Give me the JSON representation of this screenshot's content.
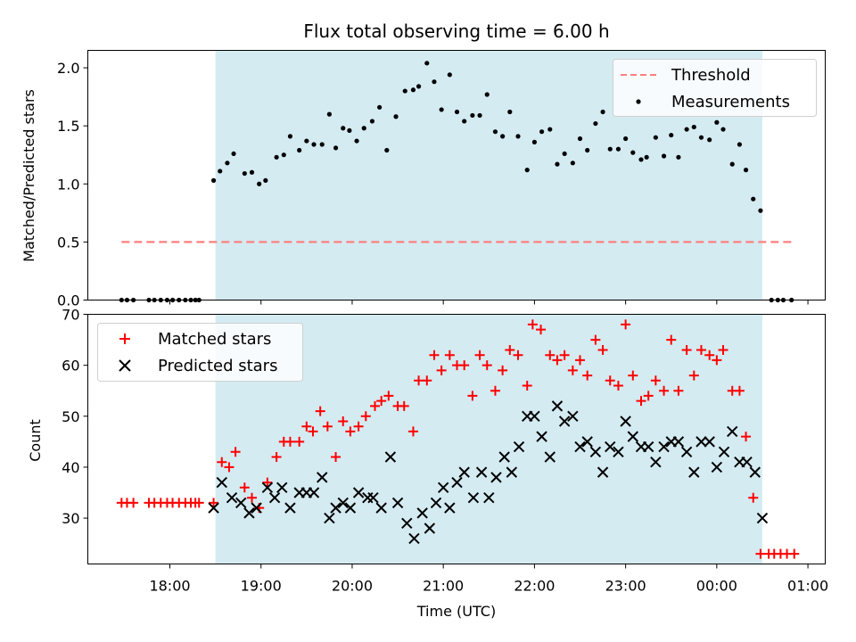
{
  "chart_data": [
    {
      "type": "scatter",
      "title": "Flux total observing time = 6.00 h",
      "xlabel": "",
      "ylabel": "Matched/Predicted stars",
      "ylim": [
        0,
        2.15
      ],
      "y_ticks": [
        "0.0",
        "0.5",
        "1.0",
        "1.5",
        "2.0"
      ],
      "y_tick_values": [
        0,
        0.5,
        1.0,
        1.5,
        2.0
      ],
      "shaded_interval": {
        "start_hours": 18.5,
        "end_hours": 24.5,
        "color": "#add8e6"
      },
      "legend": {
        "position": "top-right",
        "entries": [
          {
            "label": "Threshold",
            "marker": "dashed-line",
            "color": "#ff7f7f"
          },
          {
            "label": "Measurements",
            "marker": "dot",
            "color": "#000000"
          }
        ]
      },
      "threshold": {
        "name": "Threshold",
        "value": 0.5,
        "x_start_hours": 17.47,
        "x_end_hours": 24.83,
        "color": "#ff7f7f"
      },
      "series": [
        {
          "name": "Measurements",
          "color": "#000000",
          "marker": "dot",
          "x_hours": [
            17.47,
            17.53,
            17.6,
            17.77,
            17.83,
            17.9,
            17.97,
            18.03,
            18.1,
            18.17,
            18.23,
            18.28,
            18.32,
            18.48,
            18.55,
            18.63,
            18.7,
            18.82,
            18.9,
            18.98,
            19.05,
            19.17,
            19.25,
            19.32,
            19.42,
            19.5,
            19.58,
            19.67,
            19.75,
            19.82,
            19.9,
            19.97,
            20.05,
            20.13,
            20.22,
            20.3,
            20.38,
            20.48,
            20.58,
            20.67,
            20.73,
            20.82,
            20.9,
            20.98,
            21.07,
            21.15,
            21.23,
            21.32,
            21.4,
            21.48,
            21.57,
            21.65,
            21.73,
            21.82,
            21.92,
            22.0,
            22.08,
            22.17,
            22.25,
            22.33,
            22.42,
            22.5,
            22.58,
            22.67,
            22.75,
            22.83,
            22.92,
            23.0,
            23.08,
            23.17,
            23.23,
            23.33,
            23.42,
            23.5,
            23.58,
            23.67,
            23.75,
            23.83,
            23.92,
            24.0,
            24.07,
            24.17,
            24.25,
            24.32,
            24.4,
            24.48,
            24.6,
            24.67,
            24.73,
            24.82
          ],
          "y": [
            0,
            0,
            0,
            0,
            0,
            0,
            0,
            0,
            0,
            0,
            0,
            0,
            0,
            1.03,
            1.11,
            1.18,
            1.26,
            1.09,
            1.1,
            1.0,
            1.03,
            1.23,
            1.25,
            1.41,
            1.29,
            1.37,
            1.34,
            1.34,
            1.6,
            1.31,
            1.48,
            1.46,
            1.37,
            1.48,
            1.54,
            1.66,
            1.29,
            1.58,
            1.8,
            1.81,
            1.84,
            2.04,
            1.88,
            1.64,
            1.94,
            1.62,
            1.54,
            1.59,
            1.59,
            1.77,
            1.45,
            1.41,
            1.62,
            1.41,
            1.12,
            1.36,
            1.45,
            1.47,
            1.17,
            1.26,
            1.18,
            1.39,
            1.29,
            1.52,
            1.62,
            1.3,
            1.3,
            1.39,
            1.27,
            1.21,
            1.23,
            1.4,
            1.24,
            1.42,
            1.23,
            1.47,
            1.49,
            1.4,
            1.38,
            1.53,
            1.47,
            1.17,
            1.34,
            1.12,
            0.87,
            0.77,
            0,
            0,
            0,
            0
          ]
        }
      ]
    },
    {
      "type": "scatter",
      "title": "",
      "xlabel": "Time (UTC)",
      "ylabel": "Count",
      "ylim": [
        21,
        70
      ],
      "y_ticks": [
        "30",
        "40",
        "50",
        "60",
        "70"
      ],
      "y_tick_values": [
        30,
        40,
        50,
        60,
        70
      ],
      "x_ticks": [
        "18:00",
        "19:00",
        "20:00",
        "21:00",
        "22:00",
        "23:00",
        "00:00",
        "01:00"
      ],
      "x_tick_hours": [
        18,
        19,
        20,
        21,
        22,
        23,
        24,
        25
      ],
      "xlim_hours": [
        17.1,
        25.19
      ],
      "shaded_interval": {
        "start_hours": 18.5,
        "end_hours": 24.5,
        "color": "#add8e6"
      },
      "legend": {
        "position": "top-left",
        "entries": [
          {
            "label": "Matched stars",
            "marker": "plus",
            "color": "#ff0000"
          },
          {
            "label": "Predicted stars",
            "marker": "x",
            "color": "#000000"
          }
        ]
      },
      "series": [
        {
          "name": "Matched stars",
          "color": "#ff0000",
          "marker": "plus",
          "x_hours": [
            17.47,
            17.53,
            17.6,
            17.77,
            17.83,
            17.9,
            17.97,
            18.03,
            18.1,
            18.17,
            18.23,
            18.28,
            18.32,
            18.48,
            18.57,
            18.65,
            18.72,
            18.82,
            18.9,
            18.98,
            19.07,
            19.17,
            19.25,
            19.32,
            19.42,
            19.5,
            19.57,
            19.65,
            19.73,
            19.82,
            19.9,
            19.98,
            20.07,
            20.15,
            20.25,
            20.32,
            20.4,
            20.5,
            20.57,
            20.67,
            20.73,
            20.82,
            20.9,
            20.98,
            21.07,
            21.15,
            21.23,
            21.32,
            21.4,
            21.48,
            21.57,
            21.65,
            21.73,
            21.82,
            21.92,
            21.98,
            22.07,
            22.17,
            22.25,
            22.33,
            22.42,
            22.5,
            22.58,
            22.67,
            22.75,
            22.83,
            22.92,
            23.0,
            23.08,
            23.17,
            23.25,
            23.33,
            23.42,
            23.5,
            23.58,
            23.67,
            23.75,
            23.83,
            23.92,
            24.0,
            24.07,
            24.17,
            24.25,
            24.32,
            24.4,
            24.48,
            24.57,
            24.63,
            24.7,
            24.77,
            24.85
          ],
          "y": [
            33,
            33,
            33,
            33,
            33,
            33,
            33,
            33,
            33,
            33,
            33,
            33,
            33,
            33,
            41,
            40,
            43,
            36,
            34,
            32,
            37,
            42,
            45,
            45,
            45,
            48,
            47,
            51,
            48,
            42,
            49,
            47,
            48,
            50,
            52,
            53,
            54,
            52,
            52,
            47,
            57,
            57,
            62,
            59,
            62,
            60,
            60,
            54,
            62,
            60,
            55,
            59,
            63,
            62,
            56,
            68,
            67,
            62,
            61,
            62,
            59,
            61,
            58,
            65,
            63,
            57,
            56,
            68,
            58,
            53,
            54,
            57,
            55,
            65,
            55,
            63,
            58,
            63,
            62,
            61,
            63,
            55,
            55,
            46,
            34,
            23,
            23,
            23,
            23,
            23,
            23
          ]
        },
        {
          "name": "Predicted stars",
          "color": "#000000",
          "marker": "x",
          "x_hours": [
            18.48,
            18.57,
            18.68,
            18.78,
            18.87,
            18.95,
            19.07,
            19.15,
            19.23,
            19.32,
            19.42,
            19.5,
            19.58,
            19.67,
            19.75,
            19.82,
            19.9,
            19.98,
            20.07,
            20.17,
            20.23,
            20.32,
            20.42,
            20.5,
            20.6,
            20.68,
            20.77,
            20.85,
            20.92,
            21.0,
            21.07,
            21.15,
            21.23,
            21.33,
            21.42,
            21.5,
            21.58,
            21.67,
            21.75,
            21.83,
            21.92,
            22.0,
            22.08,
            22.17,
            22.25,
            22.33,
            22.42,
            22.5,
            22.58,
            22.67,
            22.75,
            22.83,
            22.92,
            23.0,
            23.08,
            23.17,
            23.25,
            23.33,
            23.42,
            23.5,
            23.58,
            23.67,
            23.75,
            23.83,
            23.92,
            24.0,
            24.08,
            24.17,
            24.25,
            24.33,
            24.42,
            24.5
          ],
          "y": [
            32,
            37,
            34,
            33,
            31,
            32,
            36,
            34,
            36,
            32,
            35,
            35,
            35,
            38,
            30,
            32,
            33,
            32,
            35,
            34,
            34,
            32,
            42,
            33,
            29,
            26,
            31,
            28,
            33,
            36,
            32,
            37,
            39,
            34,
            39,
            34,
            38,
            42,
            39,
            44,
            50,
            50,
            46,
            42,
            52,
            49,
            50,
            44,
            45,
            43,
            39,
            44,
            43,
            49,
            46,
            44,
            44,
            41,
            44,
            45,
            45,
            43,
            39,
            45,
            45,
            40,
            43,
            47,
            41,
            41,
            39,
            30
          ]
        }
      ]
    }
  ]
}
